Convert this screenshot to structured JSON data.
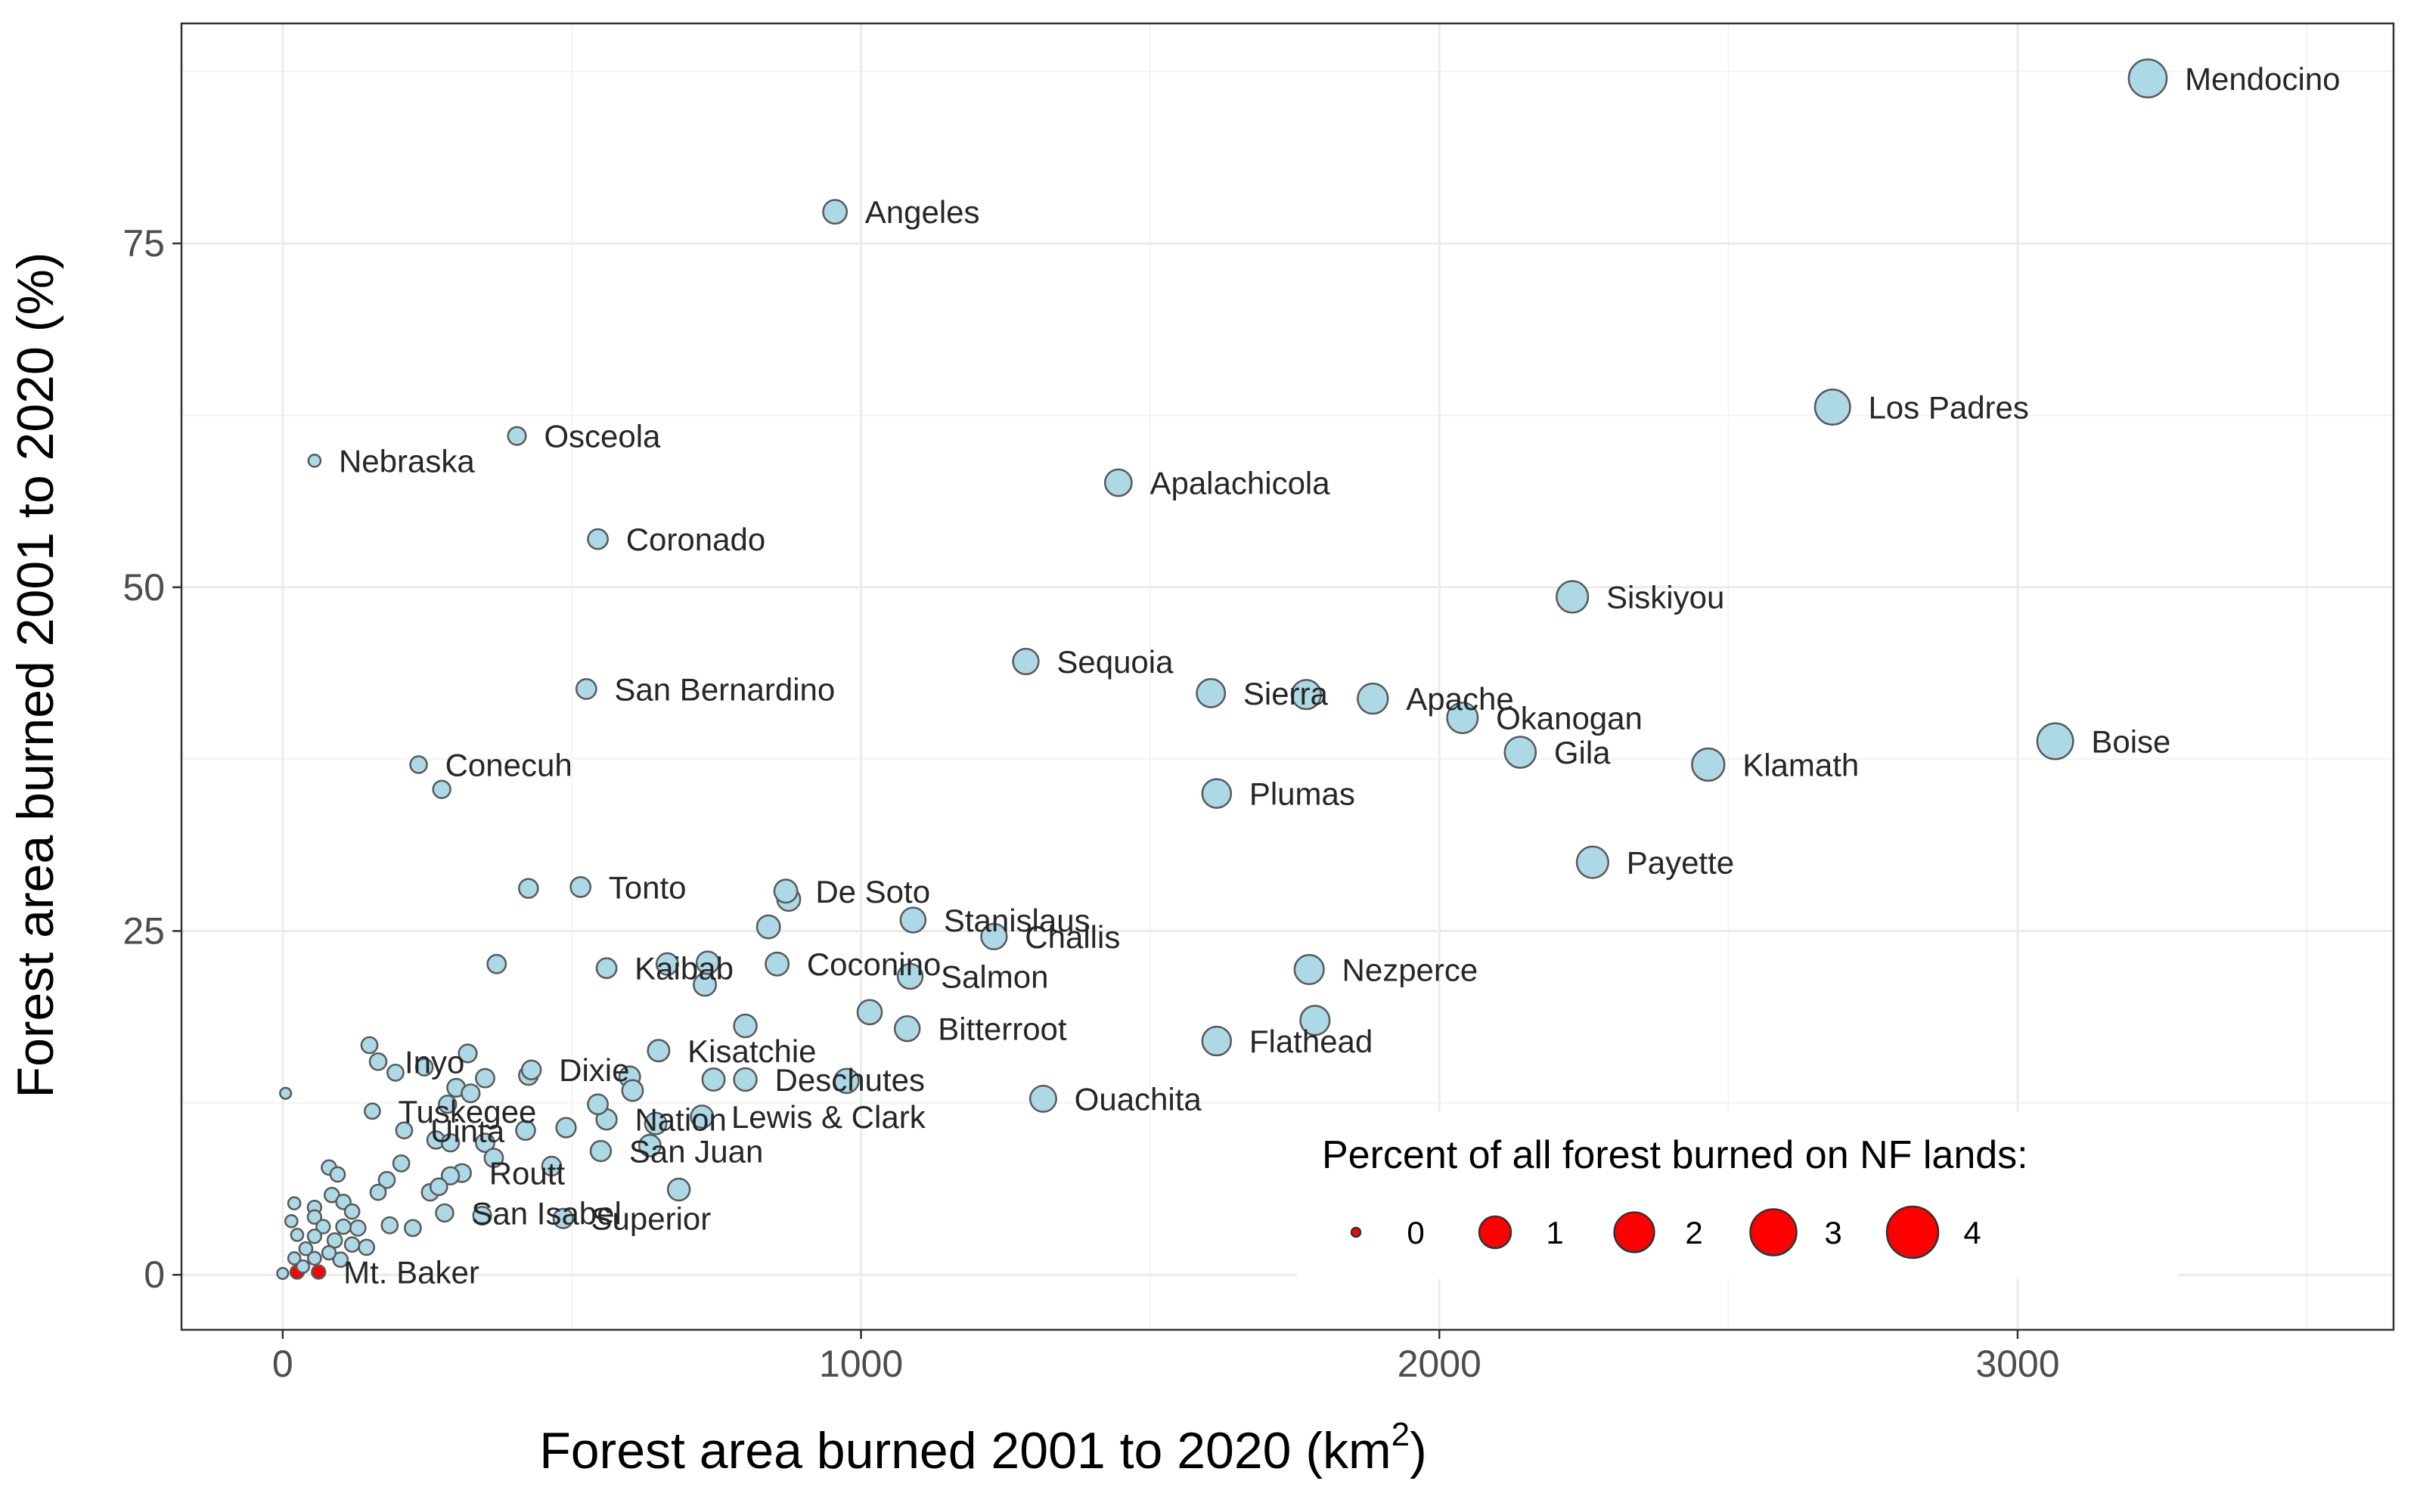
{
  "chart_data": {
    "type": "scatter",
    "title": "",
    "xlabel": "Forest area burned 2001 to 2020 (km",
    "xlabel_sup": "2",
    "xlabel_end": ")",
    "ylabel": "Forest area burned 2001 to 2020 (%)",
    "xlim": [
      -175,
      3650
    ],
    "ylim": [
      -4,
      91
    ],
    "xticks": [
      0,
      1000,
      2000,
      3000
    ],
    "yticks": [
      0,
      25,
      50,
      75
    ],
    "xtick_labels": [
      "0",
      "1000",
      "2000",
      "3000"
    ],
    "ytick_labels": [
      "0",
      "25",
      "50",
      "75"
    ],
    "x_minor": [
      500,
      1500,
      2500,
      3500
    ],
    "y_minor": [
      12.5,
      37.5,
      62.5,
      87.5
    ],
    "grid": true,
    "fill_color": "#add8e6",
    "highlight_color": "#ff0000",
    "legend": {
      "title": "Percent of all forest burned on NF lands:",
      "position": "bottom-right",
      "values": [
        0,
        1,
        2,
        3,
        4
      ],
      "labels": [
        "0",
        "1",
        "2",
        "3",
        "4"
      ]
    },
    "points": [
      {
        "x": 3225,
        "y": 87,
        "size": 4.3,
        "label": "Mendocino"
      },
      {
        "x": 955,
        "y": 77.3,
        "size": 1.1,
        "label": "Angeles"
      },
      {
        "x": 2680,
        "y": 63.1,
        "size": 3.5,
        "label": "Los Padres"
      },
      {
        "x": 55,
        "y": 59.2,
        "size": 0.05,
        "label": "Nebraska"
      },
      {
        "x": 405,
        "y": 61,
        "size": 0.4,
        "label": "Osceola"
      },
      {
        "x": 1445,
        "y": 57.6,
        "size": 1.6,
        "label": "Apalachicola"
      },
      {
        "x": 545,
        "y": 53.5,
        "size": 0.6,
        "label": "Coronado"
      },
      {
        "x": 2230,
        "y": 49.3,
        "size": 2.6,
        "label": "Siskiyou"
      },
      {
        "x": 1285,
        "y": 44.6,
        "size": 1.4,
        "label": "Sequoia"
      },
      {
        "x": 525,
        "y": 42.6,
        "size": 0.6,
        "label": "San Bernardino"
      },
      {
        "x": 1605,
        "y": 42.3,
        "size": 1.9,
        "label": "Sierra"
      },
      {
        "x": 1770,
        "y": 42.2,
        "size": 2.1,
        "label": ""
      },
      {
        "x": 1885,
        "y": 41.9,
        "size": 2.3,
        "label": "Apache"
      },
      {
        "x": 2040,
        "y": 40.5,
        "size": 2.4,
        "label": "Okanogan"
      },
      {
        "x": 2140,
        "y": 38,
        "size": 2.5,
        "label": "Gila"
      },
      {
        "x": 2465,
        "y": 37.1,
        "size": 2.8,
        "label": "Klamath"
      },
      {
        "x": 3065,
        "y": 38.8,
        "size": 3.7,
        "label": "Boise"
      },
      {
        "x": 235,
        "y": 37.1,
        "size": 0.3,
        "label": "Conecuh"
      },
      {
        "x": 275,
        "y": 35.3,
        "size": 0.35,
        "label": ""
      },
      {
        "x": 1615,
        "y": 35,
        "size": 2,
        "label": "Plumas"
      },
      {
        "x": 2265,
        "y": 30,
        "size": 2.6,
        "label": "Payette"
      },
      {
        "x": 425,
        "y": 28.1,
        "size": 0.5,
        "label": ""
      },
      {
        "x": 515,
        "y": 28.2,
        "size": 0.6,
        "label": "Tonto"
      },
      {
        "x": 875,
        "y": 27.3,
        "size": 1,
        "label": ""
      },
      {
        "x": 870,
        "y": 27.9,
        "size": 1,
        "label": "De Soto"
      },
      {
        "x": 1090,
        "y": 25.8,
        "size": 1.3,
        "label": "Stanislaus"
      },
      {
        "x": 840,
        "y": 25.3,
        "size": 1,
        "label": ""
      },
      {
        "x": 1230,
        "y": 24.6,
        "size": 1.4,
        "label": "Challis"
      },
      {
        "x": 370,
        "y": 22.6,
        "size": 0.45,
        "label": ""
      },
      {
        "x": 560,
        "y": 22.3,
        "size": 0.6,
        "label": "Kaibab"
      },
      {
        "x": 665,
        "y": 22.6,
        "size": 0.8,
        "label": ""
      },
      {
        "x": 735,
        "y": 22.7,
        "size": 0.9,
        "label": ""
      },
      {
        "x": 855,
        "y": 22.6,
        "size": 1,
        "label": "Coconino"
      },
      {
        "x": 730,
        "y": 21.1,
        "size": 0.9,
        "label": ""
      },
      {
        "x": 1085,
        "y": 21.7,
        "size": 1.3,
        "label": "Salmon"
      },
      {
        "x": 1775,
        "y": 22.2,
        "size": 2.1,
        "label": "Nezperce"
      },
      {
        "x": 1015,
        "y": 19.1,
        "size": 1.2,
        "label": ""
      },
      {
        "x": 1080,
        "y": 17.9,
        "size": 1.3,
        "label": "Bitterroot"
      },
      {
        "x": 800,
        "y": 18.1,
        "size": 0.95,
        "label": ""
      },
      {
        "x": 1615,
        "y": 17,
        "size": 2,
        "label": "Flathead"
      },
      {
        "x": 1785,
        "y": 18.5,
        "size": 2.1,
        "label": ""
      },
      {
        "x": 150,
        "y": 16.7,
        "size": 0.25,
        "label": ""
      },
      {
        "x": 165,
        "y": 15.5,
        "size": 0.3,
        "label": "Inyo"
      },
      {
        "x": 320,
        "y": 16.1,
        "size": 0.4,
        "label": ""
      },
      {
        "x": 650,
        "y": 16.3,
        "size": 0.8,
        "label": "Kisatchie"
      },
      {
        "x": 195,
        "y": 14.7,
        "size": 0.25,
        "label": ""
      },
      {
        "x": 245,
        "y": 15.1,
        "size": 0.3,
        "label": ""
      },
      {
        "x": 350,
        "y": 14.3,
        "size": 0.45,
        "label": ""
      },
      {
        "x": 425,
        "y": 14.5,
        "size": 0.5,
        "label": ""
      },
      {
        "x": 430,
        "y": 14.9,
        "size": 0.5,
        "label": "Dixie"
      },
      {
        "x": 600,
        "y": 14.4,
        "size": 0.7,
        "label": ""
      },
      {
        "x": 745,
        "y": 14.2,
        "size": 0.9,
        "label": ""
      },
      {
        "x": 800,
        "y": 14.2,
        "size": 0.95,
        "label": "Deschutes"
      },
      {
        "x": 975,
        "y": 14.1,
        "size": 1.2,
        "label": ""
      },
      {
        "x": 5,
        "y": 13.2,
        "size": 0.02,
        "label": ""
      },
      {
        "x": 300,
        "y": 13.6,
        "size": 0.4,
        "label": ""
      },
      {
        "x": 325,
        "y": 13.2,
        "size": 0.4,
        "label": ""
      },
      {
        "x": 605,
        "y": 13.4,
        "size": 0.7,
        "label": ""
      },
      {
        "x": 1315,
        "y": 12.8,
        "size": 1.5,
        "label": "Ouachita"
      },
      {
        "x": 155,
        "y": 11.9,
        "size": 0.2,
        "label": "Tuskegee"
      },
      {
        "x": 285,
        "y": 12.4,
        "size": 0.35,
        "label": ""
      },
      {
        "x": 545,
        "y": 12.4,
        "size": 0.6,
        "label": ""
      },
      {
        "x": 725,
        "y": 11.5,
        "size": 0.9,
        "label": "Lewis & Clark"
      },
      {
        "x": 210,
        "y": 10.5,
        "size": 0.25,
        "label": "Uinta"
      },
      {
        "x": 420,
        "y": 10.5,
        "size": 0.5,
        "label": ""
      },
      {
        "x": 490,
        "y": 10.7,
        "size": 0.55,
        "label": ""
      },
      {
        "x": 560,
        "y": 11.3,
        "size": 0.65,
        "label": "Nation"
      },
      {
        "x": 645,
        "y": 11,
        "size": 0.8,
        "label": ""
      },
      {
        "x": 265,
        "y": 9.8,
        "size": 0.35,
        "label": ""
      },
      {
        "x": 350,
        "y": 9.6,
        "size": 0.45,
        "label": ""
      },
      {
        "x": 290,
        "y": 9.6,
        "size": 0.35,
        "label": ""
      },
      {
        "x": 635,
        "y": 9.4,
        "size": 0.8,
        "label": ""
      },
      {
        "x": 550,
        "y": 9,
        "size": 0.65,
        "label": "San Juan"
      },
      {
        "x": 365,
        "y": 8.5,
        "size": 0.45,
        "label": ""
      },
      {
        "x": 465,
        "y": 7.9,
        "size": 0.5,
        "label": ""
      },
      {
        "x": 80,
        "y": 7.8,
        "size": 0.15,
        "label": ""
      },
      {
        "x": 95,
        "y": 7.3,
        "size": 0.15,
        "label": ""
      },
      {
        "x": 205,
        "y": 8.1,
        "size": 0.25,
        "label": ""
      },
      {
        "x": 310,
        "y": 7.4,
        "size": 0.4,
        "label": "Routt"
      },
      {
        "x": 290,
        "y": 7.2,
        "size": 0.35,
        "label": ""
      },
      {
        "x": 180,
        "y": 6.9,
        "size": 0.25,
        "label": ""
      },
      {
        "x": 165,
        "y": 6,
        "size": 0.2,
        "label": ""
      },
      {
        "x": 255,
        "y": 6,
        "size": 0.3,
        "label": ""
      },
      {
        "x": 270,
        "y": 6.4,
        "size": 0.3,
        "label": ""
      },
      {
        "x": 685,
        "y": 6.2,
        "size": 0.85,
        "label": ""
      },
      {
        "x": 85,
        "y": 5.8,
        "size": 0.15,
        "label": ""
      },
      {
        "x": 20,
        "y": 5.2,
        "size": 0.05,
        "label": ""
      },
      {
        "x": 55,
        "y": 4.9,
        "size": 0.1,
        "label": ""
      },
      {
        "x": 105,
        "y": 5.3,
        "size": 0.15,
        "label": ""
      },
      {
        "x": 120,
        "y": 4.6,
        "size": 0.15,
        "label": ""
      },
      {
        "x": 55,
        "y": 4.2,
        "size": 0.1,
        "label": ""
      },
      {
        "x": 280,
        "y": 4.5,
        "size": 0.35,
        "label": "San Isabel"
      },
      {
        "x": 345,
        "y": 4.3,
        "size": 0.4,
        "label": ""
      },
      {
        "x": 485,
        "y": 4.1,
        "size": 0.55,
        "label": "Superior"
      },
      {
        "x": 15,
        "y": 3.9,
        "size": 0.05,
        "label": ""
      },
      {
        "x": 70,
        "y": 3.5,
        "size": 0.1,
        "label": ""
      },
      {
        "x": 105,
        "y": 3.5,
        "size": 0.15,
        "label": ""
      },
      {
        "x": 130,
        "y": 3.4,
        "size": 0.2,
        "label": ""
      },
      {
        "x": 185,
        "y": 3.6,
        "size": 0.25,
        "label": ""
      },
      {
        "x": 225,
        "y": 3.4,
        "size": 0.25,
        "label": ""
      },
      {
        "x": 25,
        "y": 2.9,
        "size": 0.05,
        "label": ""
      },
      {
        "x": 55,
        "y": 2.8,
        "size": 0.1,
        "label": ""
      },
      {
        "x": 90,
        "y": 2.5,
        "size": 0.15,
        "label": ""
      },
      {
        "x": 120,
        "y": 2.2,
        "size": 0.15,
        "label": ""
      },
      {
        "x": 40,
        "y": 1.9,
        "size": 0.08,
        "label": ""
      },
      {
        "x": 145,
        "y": 2,
        "size": 0.2,
        "label": ""
      },
      {
        "x": 80,
        "y": 1.6,
        "size": 0.1,
        "label": ""
      },
      {
        "x": 20,
        "y": 1.2,
        "size": 0.05,
        "label": ""
      },
      {
        "x": 55,
        "y": 1.2,
        "size": 0.08,
        "label": ""
      },
      {
        "x": 100,
        "y": 1.1,
        "size": 0.15,
        "label": ""
      },
      {
        "x": 35,
        "y": 0.6,
        "size": 0.06,
        "label": ""
      },
      {
        "x": 0,
        "y": 0.1,
        "size": 0.02,
        "label": ""
      },
      {
        "x": 25,
        "y": 0.2,
        "size": 0.1,
        "label": "",
        "highlight": true
      },
      {
        "x": 62,
        "y": 0.2,
        "size": 0.1,
        "label": "Mt. Baker",
        "highlight": true
      }
    ]
  }
}
